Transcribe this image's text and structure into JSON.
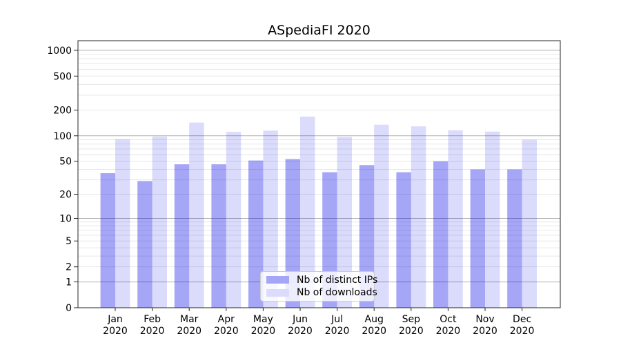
{
  "figure": {
    "background": "#ffffff"
  },
  "chart_data": {
    "type": "bar",
    "title": "ASpediaFI 2020",
    "categories": [
      "Jan 2020",
      "Feb 2020",
      "Mar 2020",
      "Apr 2020",
      "May 2020",
      "Jun 2020",
      "Jul 2020",
      "Aug 2020",
      "Sep 2020",
      "Oct 2020",
      "Nov 2020",
      "Dec 2020"
    ],
    "series": [
      {
        "name": "Nb of distinct IPs",
        "color": "#a6a6f6",
        "bar_rgba": "rgba(1,1,232,0.35)",
        "values": [
          36,
          29,
          46,
          46,
          51,
          53,
          37,
          45,
          37,
          50,
          40,
          40
        ]
      },
      {
        "name": "Nb of downloads",
        "color": "#dbdbfc",
        "bar_rgba": "rgba(1,1,232,0.14)",
        "values": [
          91,
          98,
          143,
          111,
          115,
          168,
          97,
          135,
          129,
          116,
          112,
          90
        ]
      }
    ],
    "yscale": "log1p",
    "yticks": [
      0,
      1,
      2,
      5,
      10,
      20,
      50,
      100,
      200,
      500,
      1000
    ],
    "ylim": [
      0,
      1300
    ],
    "xlabel": "",
    "ylabel": "",
    "grid": {
      "major_color": "#b0b0b0",
      "minor_color": "#e7e7e7",
      "major_at": [
        1,
        10,
        100,
        1000
      ]
    },
    "legend_position": "lower center",
    "spine_color": "#262626",
    "text_color": "#000000"
  }
}
